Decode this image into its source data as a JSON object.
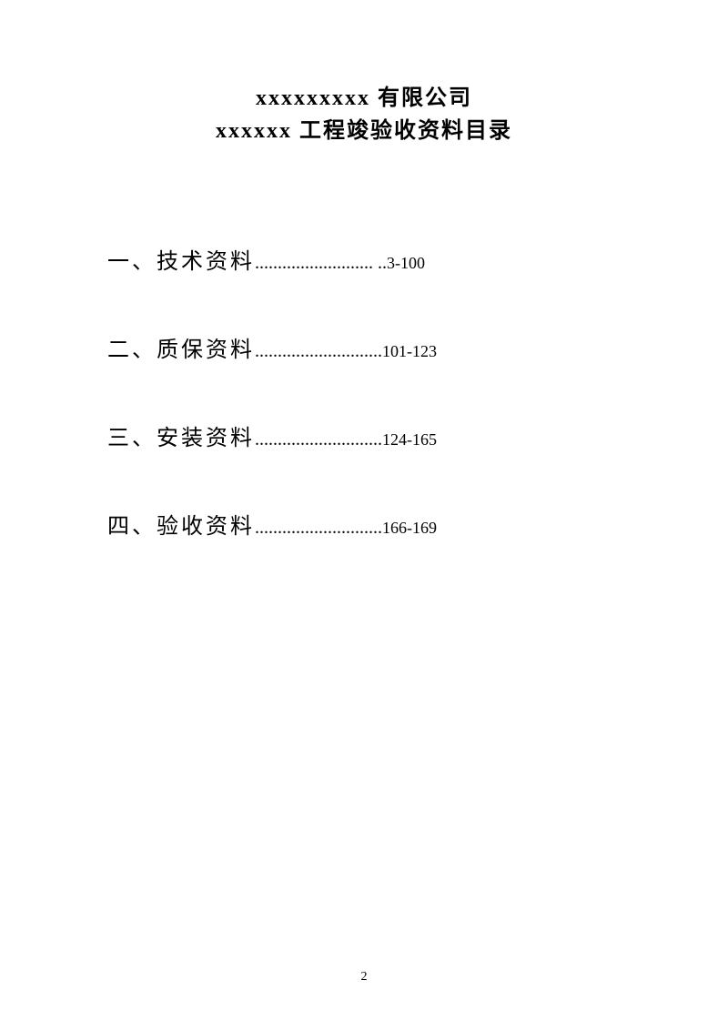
{
  "header": {
    "line1": "xxxxxxxxx 有限公司",
    "line2": "xxxxxx 工程竣验收资料目录"
  },
  "toc": {
    "entries": [
      {
        "label": "一、技术资料",
        "dots": ".......................... ..",
        "pages": "3-100"
      },
      {
        "label": "二、质保资料",
        "dots": "............................",
        "pages": "101-123"
      },
      {
        "label": "三、安装资料",
        "dots": "............................",
        "pages": "124-165"
      },
      {
        "label": "四、验收资料",
        "dots": "............................",
        "pages": "166-169"
      }
    ]
  },
  "pageNumber": "2"
}
